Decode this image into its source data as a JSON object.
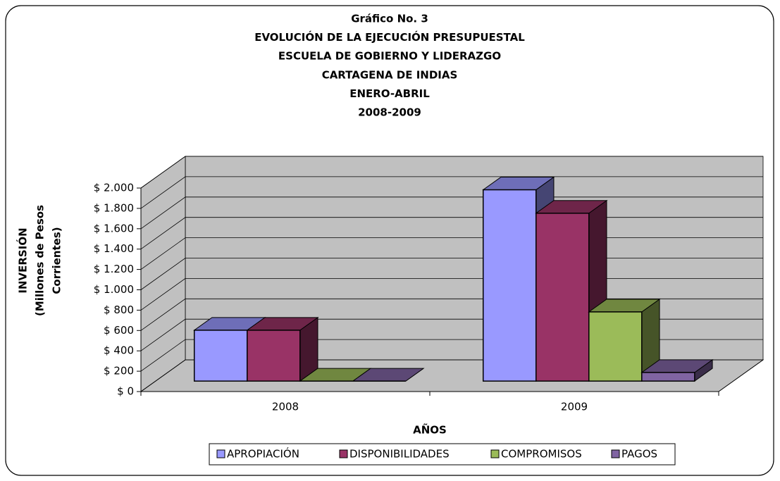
{
  "chart_data": {
    "type": "bar3d",
    "title": [
      "Gráfico No. 3",
      "EVOLUCIÓN DE LA EJECUCIÓN PRESUPUESTAL",
      "ESCUELA DE GOBIERNO Y LIDERAZGO",
      "CARTAGENA DE INDIAS",
      "ENERO-ABRIL",
      "2008-2009"
    ],
    "y_label": [
      "INVERSIÓN",
      "(Millones de Pesos",
      "Corrientes)"
    ],
    "x_label": "AÑOS",
    "categories": [
      "2008",
      "2009"
    ],
    "series": [
      {
        "name": "APROPIACIÓN",
        "color": "#9999ff",
        "values": [
          500,
          1880
        ]
      },
      {
        "name": "DISPONIBILIDADES",
        "color": "#993366",
        "values": [
          500,
          1650
        ]
      },
      {
        "name": "COMPROMISOS",
        "color": "#9bbb59",
        "values": [
          0,
          680
        ]
      },
      {
        "name": "PAGOS",
        "color": "#8064a2",
        "values": [
          0,
          85
        ]
      }
    ],
    "ylim": [
      0,
      2000
    ],
    "yticks": [
      {
        "value": 0,
        "label": "$ 0"
      },
      {
        "value": 200,
        "label": "$ 200"
      },
      {
        "value": 400,
        "label": "$ 400"
      },
      {
        "value": 600,
        "label": "$ 600"
      },
      {
        "value": 800,
        "label": "$ 800"
      },
      {
        "value": 1000,
        "label": "$ 1.000"
      },
      {
        "value": 1200,
        "label": "$ 1.200"
      },
      {
        "value": 1400,
        "label": "$ 1.400"
      },
      {
        "value": 1600,
        "label": "$ 1.600"
      },
      {
        "value": 1800,
        "label": "$ 1.800"
      },
      {
        "value": 2000,
        "label": "$ 2.000"
      }
    ],
    "grid": true
  }
}
